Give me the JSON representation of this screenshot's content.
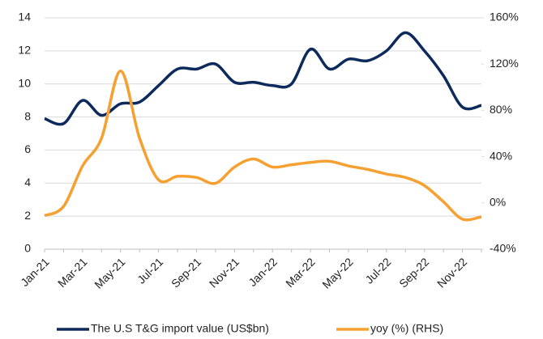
{
  "chart_data": {
    "type": "line",
    "categories": [
      "Jan-21",
      null,
      "Mar-21",
      null,
      "May-21",
      null,
      "Jul-21",
      null,
      "Sep-21",
      null,
      "Nov-21",
      null,
      "Jan-22",
      null,
      "Mar-22",
      null,
      "May-22",
      null,
      "Jul-22",
      null,
      "Sep-22",
      null,
      "Nov-22",
      null
    ],
    "series": [
      {
        "name": "The U.S T&G import value (US$bn)",
        "color": "#0d2a5c",
        "values": [
          7.9,
          7.6,
          9.0,
          8.1,
          8.8,
          8.9,
          9.9,
          10.9,
          10.9,
          11.2,
          10.1,
          10.1,
          9.9,
          10.0,
          12.1,
          10.9,
          11.5,
          11.4,
          12.0,
          13.1,
          12.0,
          10.5,
          8.6,
          8.7
        ]
      },
      {
        "name": "yoy (%) (RHS)",
        "color": "#f5a030",
        "axis": "y2",
        "values": [
          -11,
          -3,
          32,
          56,
          114,
          56,
          20,
          23,
          22,
          17,
          31,
          38,
          31,
          33,
          35,
          36,
          32,
          29,
          25,
          22,
          15,
          1,
          -14,
          -12
        ]
      }
    ],
    "ylim": [
      0,
      14
    ],
    "yticks": [
      0,
      2,
      4,
      6,
      8,
      10,
      12,
      14
    ],
    "y2lim": [
      -40,
      160
    ],
    "y2ticks": [
      {
        "value": -40,
        "label": "-40%"
      },
      {
        "value": 0,
        "label": "0%"
      },
      {
        "value": 40,
        "label": "40%"
      },
      {
        "value": 80,
        "label": "80%"
      },
      {
        "value": 120,
        "label": "120%"
      },
      {
        "value": 160,
        "label": "160%"
      }
    ],
    "grid": true,
    "legend": "bottom"
  }
}
